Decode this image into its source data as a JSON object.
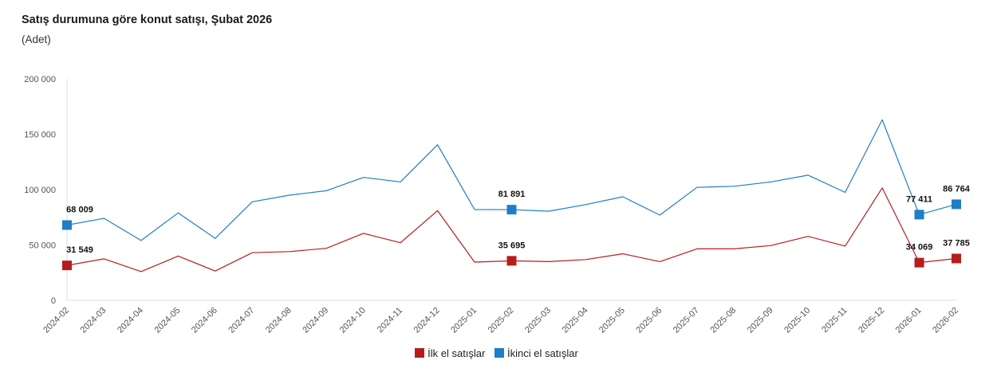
{
  "chart_data": {
    "type": "line",
    "title": "Satış durumuna göre konut satışı, Şubat 2026",
    "subtitle": "(Adet)",
    "xlabel": "",
    "ylabel": "",
    "ylim": [
      0,
      200000
    ],
    "yticks": [
      0,
      50000,
      100000,
      150000,
      200000
    ],
    "ytick_labels": [
      "0",
      "50 000",
      "100 000",
      "150 000",
      "200 000"
    ],
    "legend_position": "bottom-center",
    "categories": [
      "2024-02",
      "2024-03",
      "2024-04",
      "2024-05",
      "2024-06",
      "2024-07",
      "2024-08",
      "2024-09",
      "2024-10",
      "2024-11",
      "2024-12",
      "2025-01",
      "2025-02",
      "2025-03",
      "2025-04",
      "2025-05",
      "2025-06",
      "2025-07",
      "2025-08",
      "2025-09",
      "2025-10",
      "2025-11",
      "2025-12",
      "2026-01",
      "2026-02"
    ],
    "series": [
      {
        "name": "İlk el satışlar",
        "color": "#b71c1c",
        "values": [
          31549,
          37500,
          26000,
          40000,
          26500,
          43000,
          44000,
          47000,
          60500,
          52000,
          81000,
          34500,
          35695,
          35000,
          36800,
          42000,
          35000,
          46500,
          46500,
          49500,
          57800,
          49000,
          101500,
          34069,
          37785
        ],
        "labels": [
          {
            "index": 0,
            "text": "31 549"
          },
          {
            "index": 12,
            "text": "35 695"
          },
          {
            "index": 23,
            "text": "34 069"
          },
          {
            "index": 24,
            "text": "37 785"
          }
        ]
      },
      {
        "name": "İkinci el satışlar",
        "color": "#1e7ec8",
        "values": [
          68009,
          74000,
          54000,
          79000,
          56000,
          89000,
          95000,
          99000,
          111000,
          107000,
          140500,
          82000,
          81891,
          80500,
          86500,
          93500,
          77000,
          102000,
          103000,
          107000,
          113000,
          97500,
          163000,
          77411,
          86764
        ],
        "labels": [
          {
            "index": 0,
            "text": "68 009"
          },
          {
            "index": 12,
            "text": "81 891"
          },
          {
            "index": 23,
            "text": "77 411"
          },
          {
            "index": 24,
            "text": "86 764"
          }
        ]
      }
    ]
  }
}
